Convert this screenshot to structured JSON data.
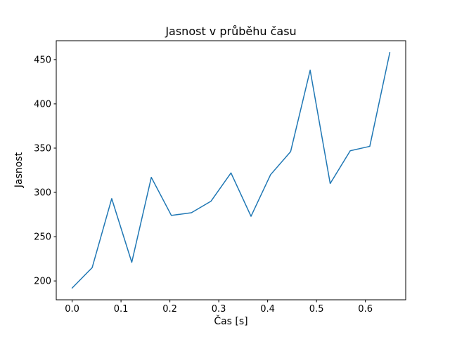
{
  "figure": {
    "background": "#ffffff"
  },
  "chart_data": {
    "type": "line",
    "title": "Jasnost v průběhu času",
    "xlabel": "Čas [s]",
    "ylabel": "Jasnost",
    "x": [
      0.0,
      0.041,
      0.081,
      0.122,
      0.162,
      0.203,
      0.244,
      0.284,
      0.325,
      0.366,
      0.406,
      0.447,
      0.487,
      0.528,
      0.569,
      0.609,
      0.65
    ],
    "y": [
      192,
      215,
      293,
      221,
      317,
      274,
      277,
      290,
      322,
      273,
      320,
      346,
      438,
      310,
      347,
      352,
      458
    ],
    "xlim": [
      -0.0325,
      0.6825
    ],
    "ylim": [
      178.7,
      471.3
    ],
    "xticks": [
      0.0,
      0.1,
      0.2,
      0.3,
      0.4,
      0.5,
      0.6
    ],
    "xtick_labels": [
      "0.0",
      "0.1",
      "0.2",
      "0.3",
      "0.4",
      "0.5",
      "0.6"
    ],
    "yticks": [
      200,
      250,
      300,
      350,
      400,
      450
    ],
    "ytick_labels": [
      "200",
      "250",
      "300",
      "350",
      "400",
      "450"
    ],
    "line_color": "#1f77b4",
    "line_width": 1.5,
    "axes_color": "#000000",
    "grid": false,
    "legend": null
  }
}
